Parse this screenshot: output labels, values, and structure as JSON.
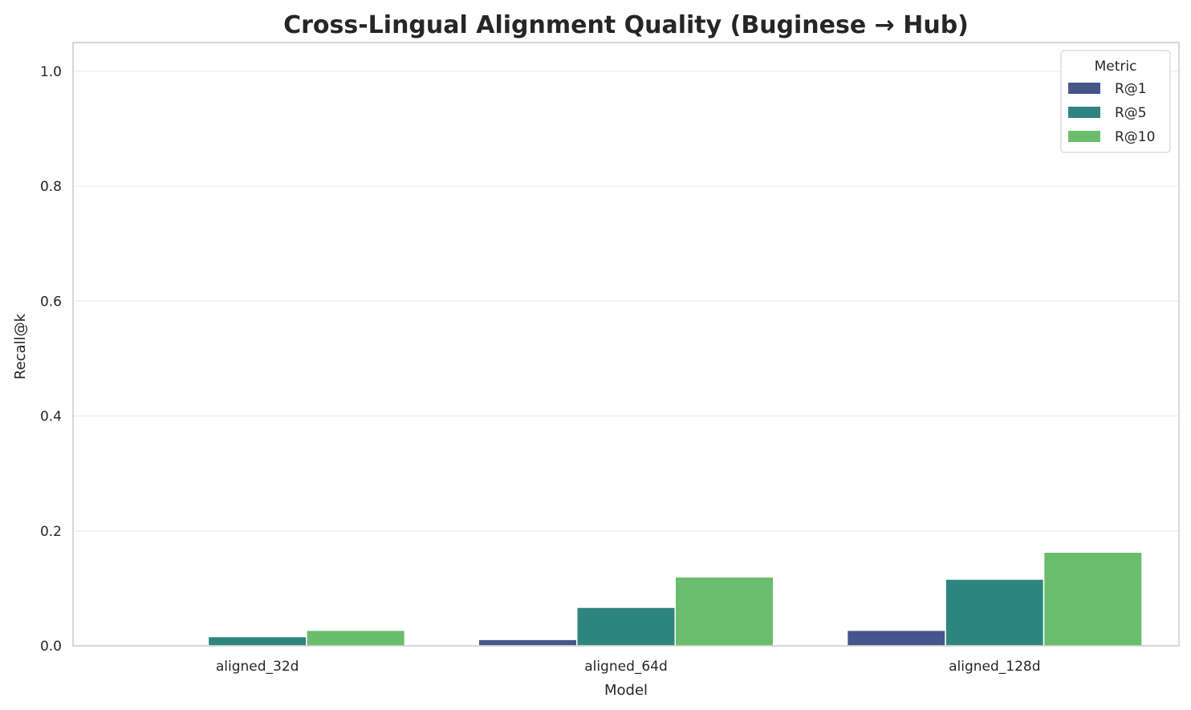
{
  "chart_data": {
    "type": "bar",
    "title": "Cross-Lingual Alignment Quality (Buginese → Hub)",
    "xlabel": "Model",
    "ylabel": "Recall@k",
    "categories": [
      "aligned_32d",
      "aligned_64d",
      "aligned_128d"
    ],
    "series": [
      {
        "name": "R@1",
        "values": [
          0.0,
          0.011,
          0.027
        ],
        "color": "#46558a"
      },
      {
        "name": "R@5",
        "values": [
          0.016,
          0.067,
          0.116
        ],
        "color": "#2e8580"
      },
      {
        "name": "R@10",
        "values": [
          0.027,
          0.12,
          0.163
        ],
        "color": "#6abd6c"
      }
    ],
    "ylim": [
      0,
      1.05
    ],
    "yticks": [
      "0.0",
      "0.2",
      "0.4",
      "0.6",
      "0.8",
      "1.0"
    ],
    "grid": "horizontal",
    "legend": {
      "title": "Metric",
      "position": "top-right"
    }
  }
}
